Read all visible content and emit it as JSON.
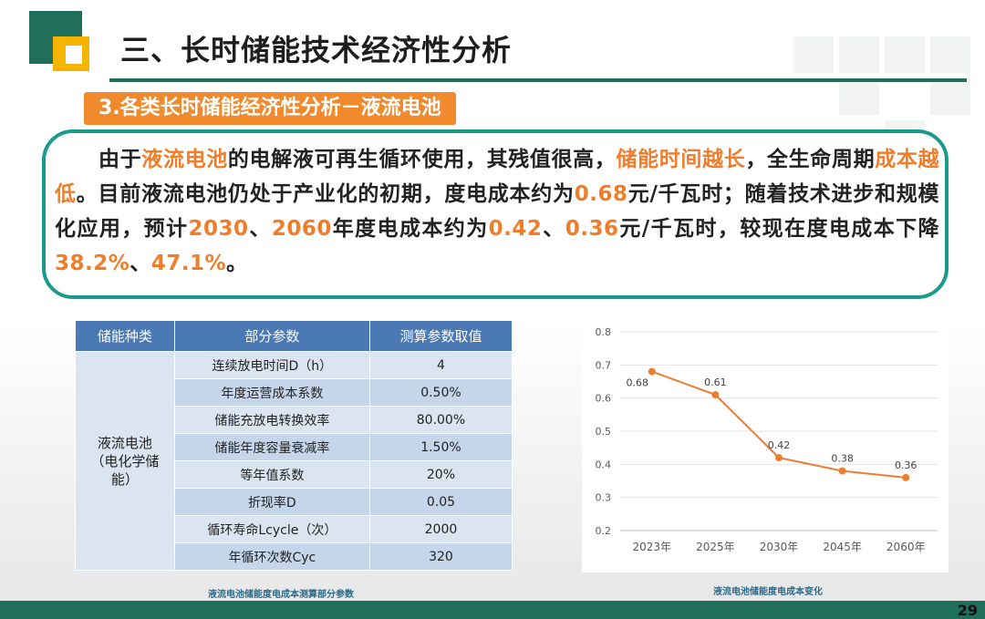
{
  "header": {
    "title": "三、长时储能技术经济性分析",
    "section": "3.各类长时储能经济性分析－液流电池"
  },
  "callout": {
    "parts": [
      {
        "t": "由于",
        "hl": false
      },
      {
        "t": "液流电池",
        "hl": true
      },
      {
        "t": "的电解液可再生循环使用，其残值很高，",
        "hl": false
      },
      {
        "t": "储能时间越长",
        "hl": true
      },
      {
        "t": "，全生命周期",
        "hl": false
      },
      {
        "t": "成本越低",
        "hl": true
      },
      {
        "t": "。目前液流电池仍处于产业化的初期，度电成本约为",
        "hl": false
      },
      {
        "t": "0.68",
        "hl": true
      },
      {
        "t": "元/千瓦时；随着技术进步和规模化应用，预计",
        "hl": false
      },
      {
        "t": "2030",
        "hl": true
      },
      {
        "t": "、",
        "hl": false
      },
      {
        "t": "2060",
        "hl": true
      },
      {
        "t": "年度电成本约为",
        "hl": false
      },
      {
        "t": "0.42",
        "hl": true
      },
      {
        "t": "、",
        "hl": false
      },
      {
        "t": "0.36",
        "hl": true
      },
      {
        "t": "元/千瓦时，较现在度电成本下降",
        "hl": false
      },
      {
        "t": "38.2%",
        "hl": true
      },
      {
        "t": "、",
        "hl": false
      },
      {
        "t": "47.1%",
        "hl": true
      },
      {
        "t": "。",
        "hl": false
      }
    ]
  },
  "table": {
    "headers": [
      "储能种类",
      "部分参数",
      "测算参数取值"
    ],
    "category": "液流电池\n（电化学储\n能）",
    "rows": [
      [
        "连续放电时间D（h）",
        "4"
      ],
      [
        "年度运营成本系数",
        "0.50%"
      ],
      [
        "储能充放电转换效率",
        "80.00%"
      ],
      [
        "储能年度容量衰减率",
        "1.50%"
      ],
      [
        "等年值系数",
        "20%"
      ],
      [
        "折现率D",
        "0.05"
      ],
      [
        "循环寿命Lcycle（次）",
        "2000"
      ],
      [
        "年循环次数Cyc",
        "320"
      ]
    ],
    "caption": "液流电池储能度电成本测算部分参数"
  },
  "chart_data": {
    "type": "line",
    "categories": [
      "2023年",
      "2025年",
      "2030年",
      "2045年",
      "2060年"
    ],
    "series": [
      {
        "values": [
          0.68,
          0.61,
          0.42,
          0.38,
          0.36
        ]
      }
    ],
    "data_labels": [
      "0.68",
      "0.61",
      "0.42",
      "0.38",
      "0.36"
    ],
    "yticks": [
      "0.8",
      "0.7",
      "0.6",
      "0.5",
      "0.4",
      "0.3",
      "0.2"
    ],
    "ylim": [
      0.2,
      0.8
    ],
    "grid": true,
    "color": "#ed7d31",
    "caption": "液流电池储能度电成本变化"
  },
  "footer": {
    "page": "29"
  }
}
